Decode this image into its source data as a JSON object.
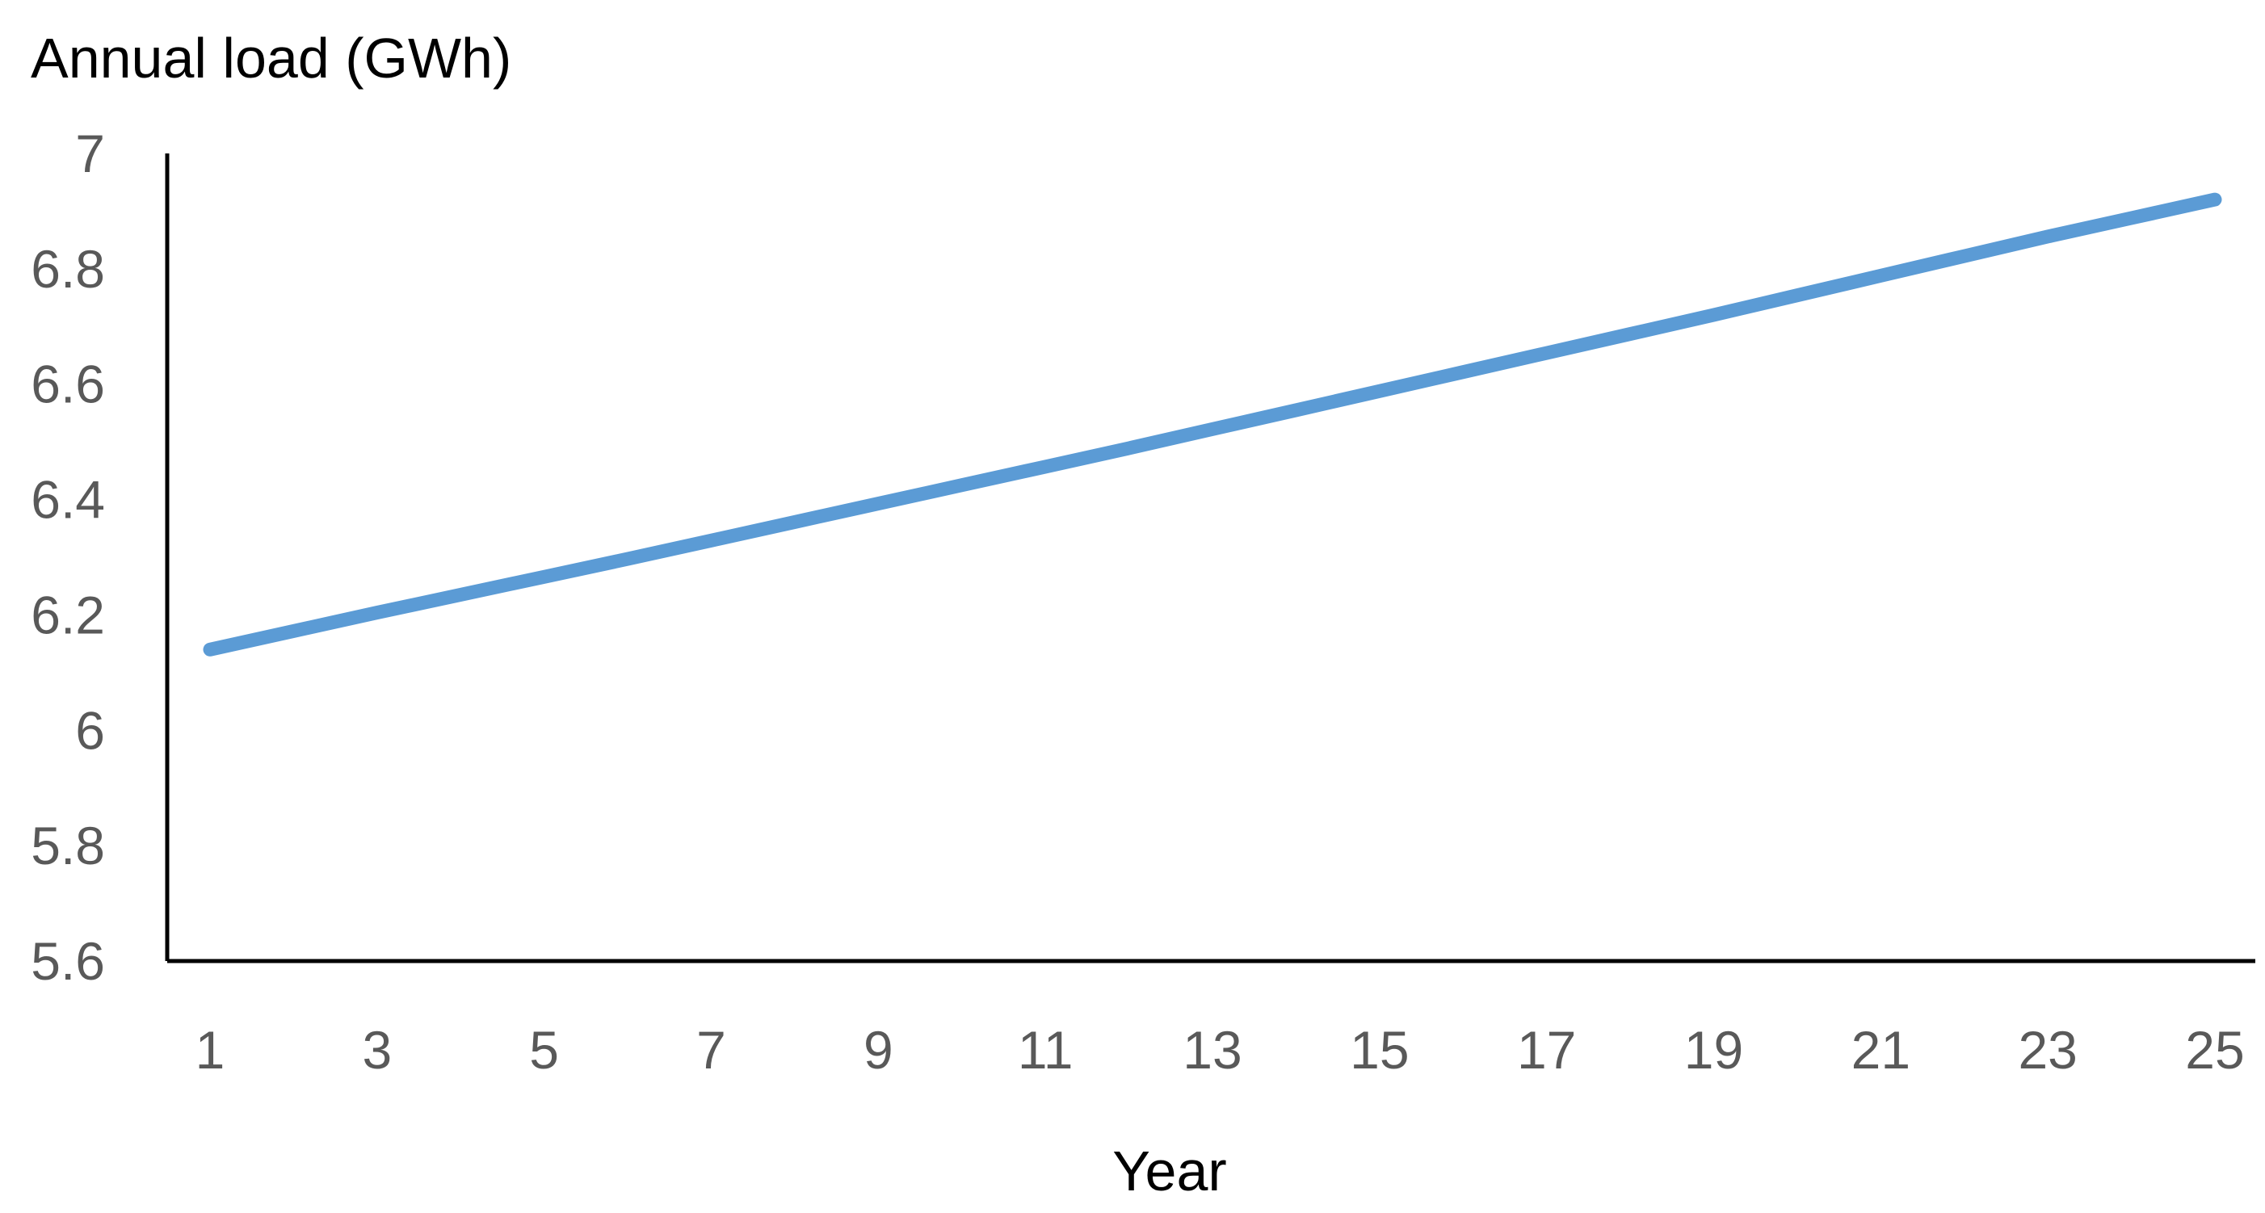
{
  "chart_data": {
    "type": "line",
    "title": "",
    "ylabel": "Annual load (GWh)",
    "xlabel": "Year",
    "ylim": [
      5.6,
      7
    ],
    "y_ticks": [
      "5.6",
      "5.8",
      "6",
      "6.2",
      "6.4",
      "6.6",
      "6.8",
      "7"
    ],
    "x_tick_labels": [
      "1",
      "3",
      "5",
      "7",
      "9",
      "11",
      "13",
      "15",
      "17",
      "19",
      "21",
      "23",
      "25"
    ],
    "grid": false,
    "legend": "none",
    "line_color": "#5B9BD5",
    "series": [
      {
        "x": [
          1,
          2,
          3,
          4,
          5,
          6,
          7,
          8,
          9,
          10,
          11,
          12,
          13,
          14,
          15,
          16,
          17,
          18,
          19,
          20,
          21,
          22,
          23,
          24,
          25
        ],
        "values": [
          6.14,
          6.172,
          6.204,
          6.235,
          6.266,
          6.297,
          6.329,
          6.361,
          6.393,
          6.425,
          6.457,
          6.489,
          6.522,
          6.555,
          6.588,
          6.621,
          6.654,
          6.687,
          6.72,
          6.754,
          6.788,
          6.822,
          6.856,
          6.888,
          6.92
        ]
      }
    ]
  }
}
